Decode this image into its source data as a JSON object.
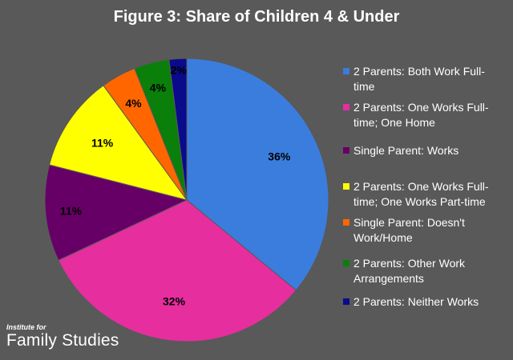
{
  "chart_data": {
    "type": "pie",
    "title": "Figure 3: Share of Children 4 & Under",
    "legend_position": "right",
    "series": [
      {
        "label": "2 Parents: Both Work Full-time",
        "value": 36,
        "display": "36%",
        "color": "#3B7DDD"
      },
      {
        "label": "2 Parents: One Works Full-time; One Home",
        "value": 32,
        "display": "32%",
        "color": "#E62E9E"
      },
      {
        "label": "Single Parent: Works",
        "value": 11,
        "display": "11%",
        "color": "#660066"
      },
      {
        "label": "2 Parents: One Works Full-time; One Works Part-time",
        "value": 11,
        "display": "11%",
        "color": "#FFFF00"
      },
      {
        "label": "Single Parent: Doesn't Work/Home",
        "value": 4,
        "display": "4%",
        "color": "#FF6600"
      },
      {
        "label": "2 Parents: Other Work Arrangements",
        "value": 4,
        "display": "4%",
        "color": "#0A7F0A"
      },
      {
        "label": "2 Parents: Neither Works",
        "value": 2,
        "display": "2%",
        "color": "#0A0A8C"
      }
    ]
  },
  "legend_lines": [
    [
      "2 Parents: Both Work Full-",
      "time"
    ],
    [
      "2 Parents: One Works Full-",
      "time; One Home"
    ],
    [
      "Single Parent: Works"
    ],
    [
      "2 Parents: One Works Full-",
      "time; One Works Part-time"
    ],
    [
      "Single Parent: Doesn't",
      "Work/Home"
    ],
    [
      "2 Parents: Other Work",
      "Arrangements"
    ],
    [
      "2 Parents: Neither Works"
    ]
  ],
  "branding": {
    "line1": "Institute for",
    "line2": "Family Studies"
  },
  "colors": {
    "background": "#595959",
    "text": "#FFFFFF",
    "slice_border": "#595959"
  }
}
